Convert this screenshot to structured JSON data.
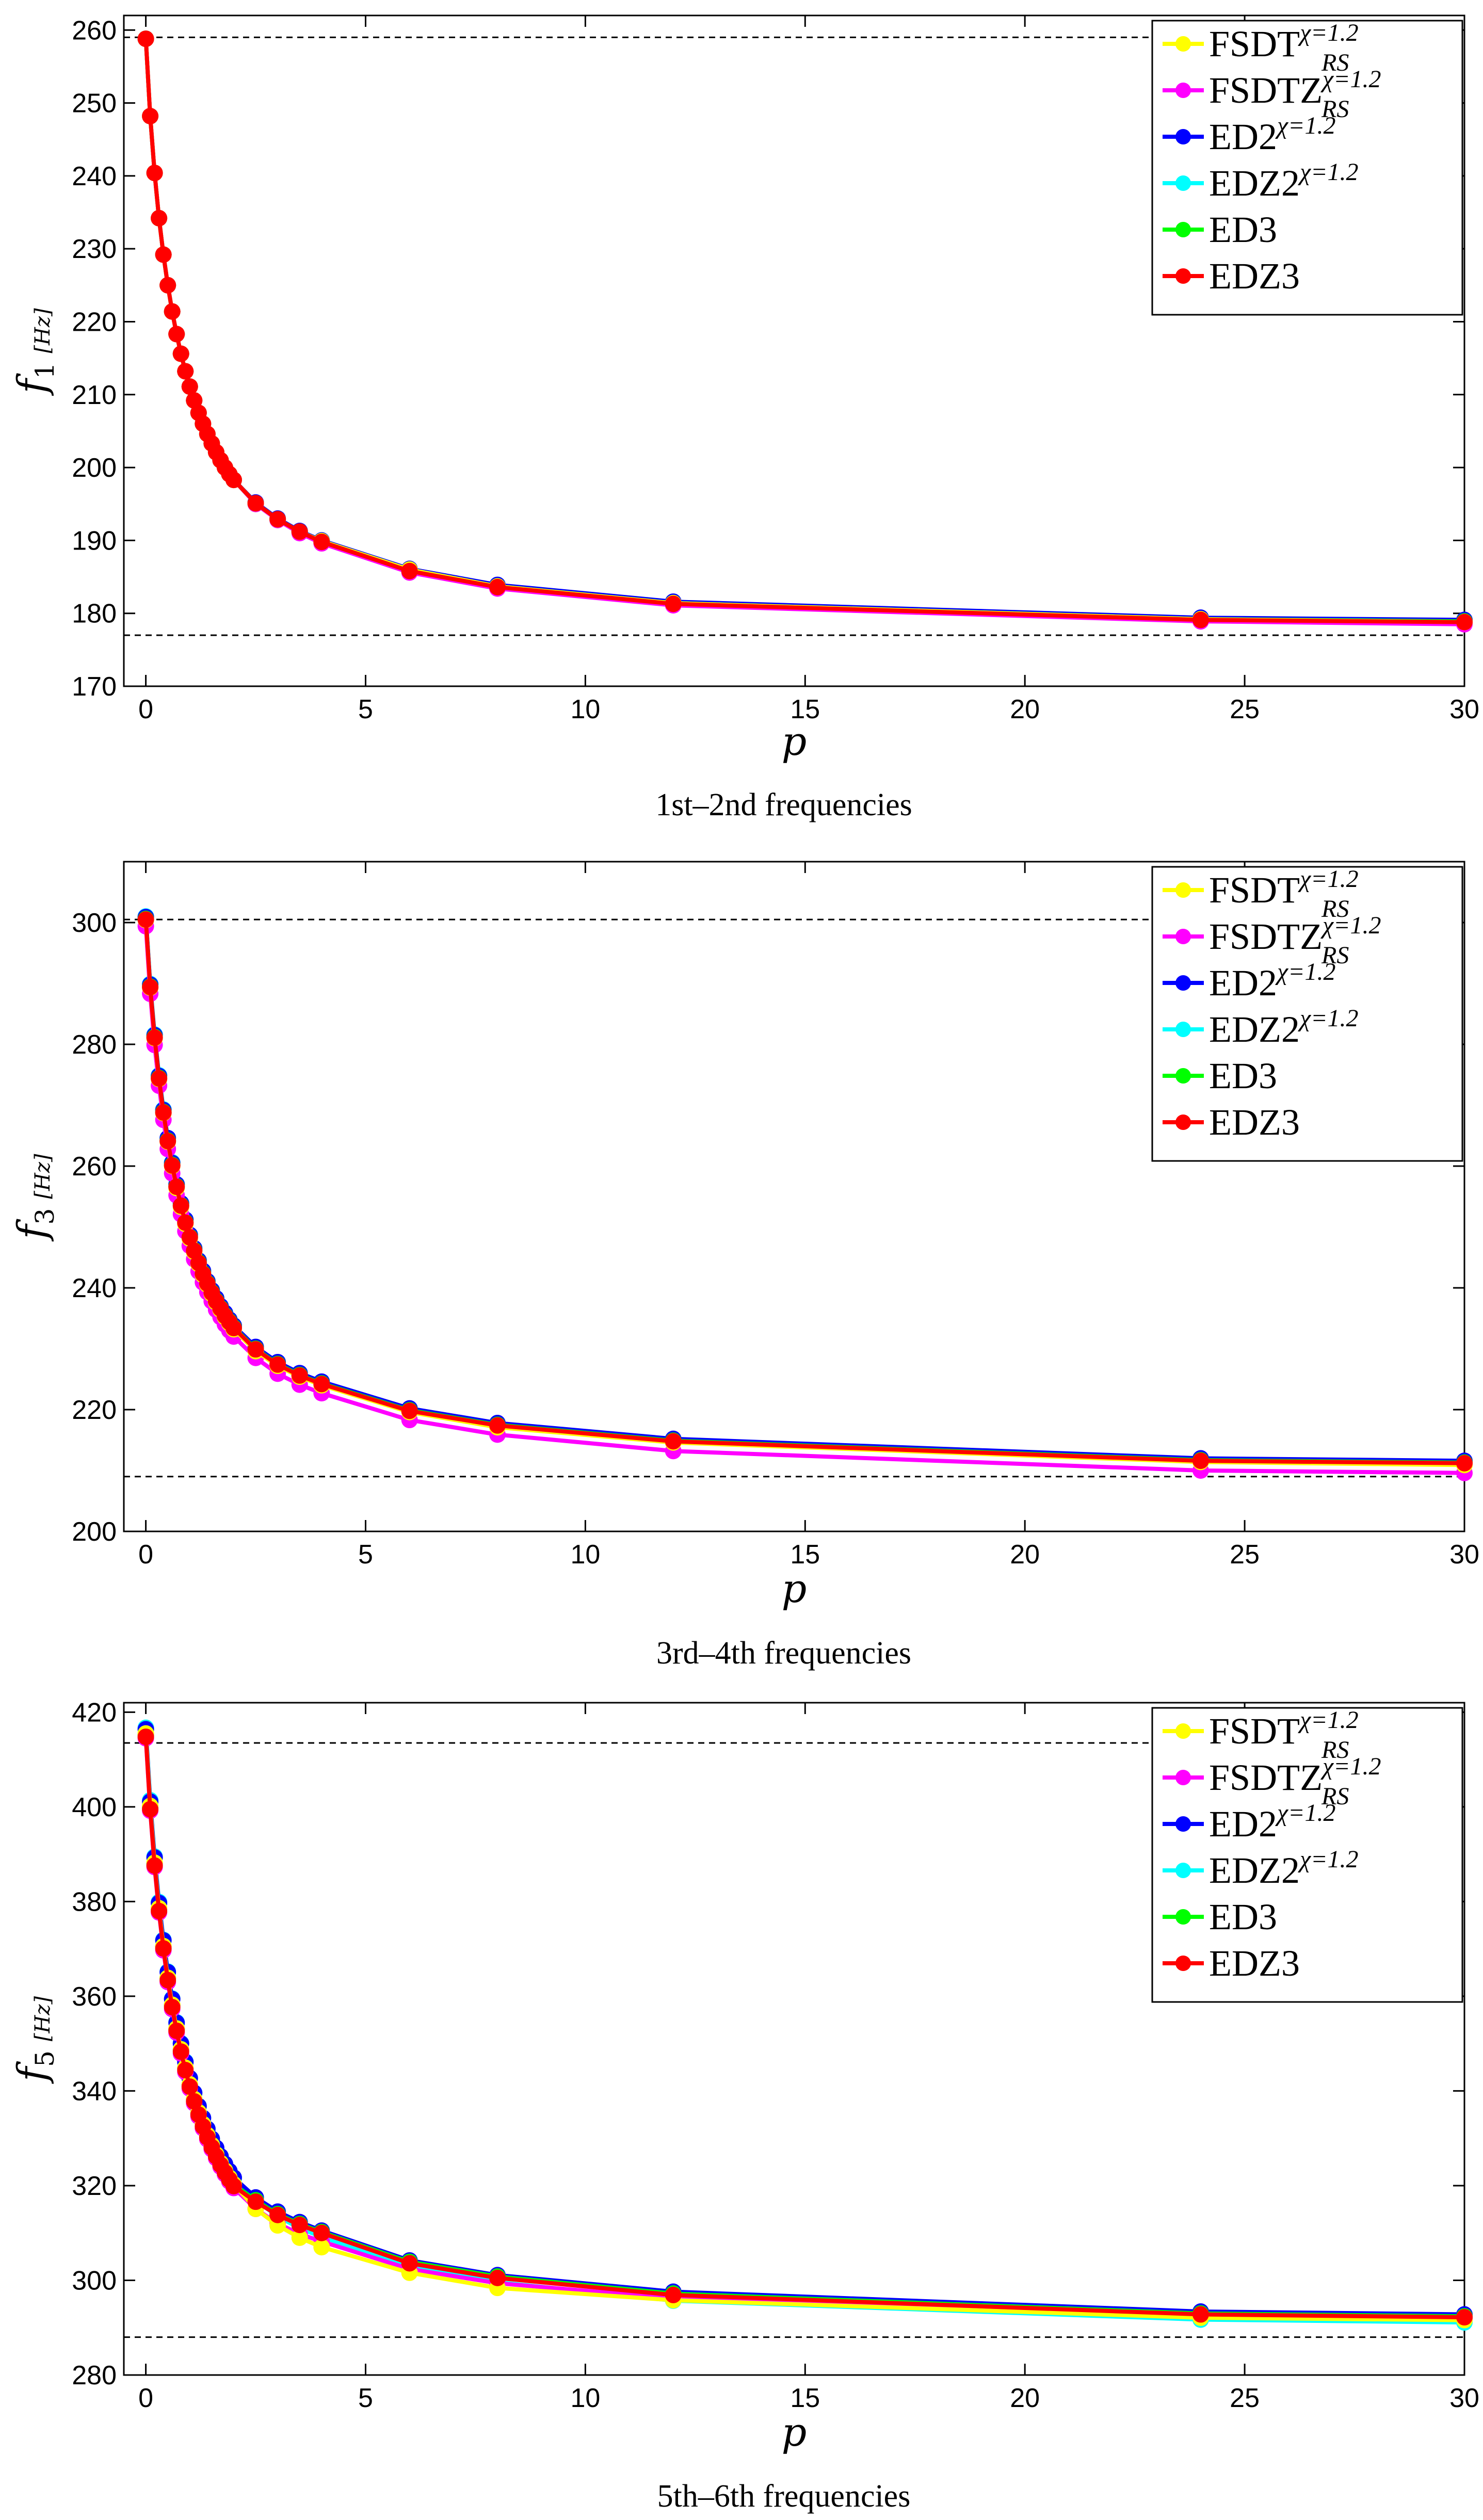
{
  "chart_data": [
    {
      "type": "line",
      "caption": "1st–2nd frequencies",
      "xlabel": "p",
      "ylabel": {
        "symbol": "f",
        "sub": "1",
        "unit": "[Hz]"
      },
      "xlim": [
        -0.5,
        30
      ],
      "ylim": [
        170,
        262
      ],
      "xticks": [
        0,
        5,
        10,
        15,
        20,
        25,
        30
      ],
      "yticks": [
        170,
        180,
        190,
        200,
        210,
        220,
        230,
        240,
        250,
        260
      ],
      "reference_lines": [
        259,
        177
      ],
      "x": [
        0,
        0.1,
        0.2,
        0.3,
        0.4,
        0.5,
        0.6,
        0.7,
        0.8,
        0.9,
        1.0,
        1.1,
        1.2,
        1.3,
        1.4,
        1.5,
        1.6,
        1.7,
        1.8,
        1.9,
        2.0,
        2.5,
        3.0,
        3.5,
        4.0,
        6.0,
        8.0,
        12.0,
        24.0,
        30.0
      ],
      "series": [
        {
          "name": "FSDT",
          "values": [
            258.8,
            248.2,
            240.4,
            234.2,
            229.2,
            225.0,
            221.4,
            218.3,
            215.6,
            213.2,
            211.1,
            209.2,
            207.5,
            206.0,
            204.6,
            203.3,
            202.1,
            201.0,
            200.0,
            199.1,
            198.3,
            195.1,
            192.9,
            191.2,
            189.9,
            186.0,
            183.7,
            181.4,
            179.2,
            178.8
          ]
        },
        {
          "name": "FSDTZ",
          "values": [
            258.8,
            248.2,
            240.4,
            234.2,
            229.2,
            225.0,
            221.4,
            218.3,
            215.6,
            213.2,
            211.1,
            209.2,
            207.5,
            206.0,
            204.6,
            203.3,
            202.1,
            201.0,
            200.0,
            199.1,
            198.3,
            195.0,
            192.8,
            191.0,
            189.6,
            185.6,
            183.4,
            181.1,
            178.9,
            178.5
          ]
        },
        {
          "name": "ED2",
          "values": [
            258.8,
            248.2,
            240.4,
            234.2,
            229.2,
            225.0,
            221.4,
            218.3,
            215.6,
            213.2,
            211.1,
            209.2,
            207.5,
            206.0,
            204.6,
            203.3,
            202.1,
            201.0,
            200.0,
            199.1,
            198.3,
            195.2,
            193.0,
            191.3,
            190.0,
            186.1,
            183.9,
            181.6,
            179.4,
            179.1
          ]
        },
        {
          "name": "EDZ2",
          "values": [
            258.8,
            248.2,
            240.4,
            234.2,
            229.2,
            225.0,
            221.4,
            218.3,
            215.6,
            213.2,
            211.1,
            209.2,
            207.5,
            206.0,
            204.6,
            203.3,
            202.1,
            201.0,
            200.0,
            199.1,
            198.3,
            195.0,
            192.8,
            191.1,
            189.7,
            185.7,
            183.5,
            181.2,
            179.0,
            178.6
          ]
        },
        {
          "name": "ED3",
          "values": [
            258.8,
            248.2,
            240.4,
            234.2,
            229.2,
            225.0,
            221.4,
            218.3,
            215.6,
            213.2,
            211.1,
            209.2,
            207.5,
            206.0,
            204.6,
            203.3,
            202.1,
            201.0,
            200.0,
            199.1,
            198.3,
            195.1,
            192.9,
            191.2,
            189.9,
            185.9,
            183.7,
            181.4,
            179.2,
            178.9
          ]
        },
        {
          "name": "EDZ3",
          "values": [
            258.8,
            248.2,
            240.4,
            234.2,
            229.2,
            225.0,
            221.4,
            218.3,
            215.6,
            213.2,
            211.1,
            209.2,
            207.5,
            206.0,
            204.6,
            203.3,
            202.1,
            201.0,
            200.0,
            199.1,
            198.3,
            195.1,
            192.9,
            191.2,
            189.8,
            185.8,
            183.6,
            181.3,
            179.1,
            178.8
          ]
        }
      ]
    },
    {
      "type": "line",
      "caption": "3rd–4th frequencies",
      "xlabel": "p",
      "ylabel": {
        "symbol": "f",
        "sub": "3",
        "unit": "[Hz]"
      },
      "xlim": [
        -0.5,
        30
      ],
      "ylim": [
        200,
        310
      ],
      "xticks": [
        0,
        5,
        10,
        15,
        20,
        25,
        30
      ],
      "yticks": [
        200,
        220,
        240,
        260,
        280,
        300
      ],
      "reference_lines": [
        300.5,
        209
      ],
      "x": [
        0,
        0.1,
        0.2,
        0.3,
        0.4,
        0.5,
        0.6,
        0.7,
        0.8,
        0.9,
        1.0,
        1.1,
        1.2,
        1.3,
        1.4,
        1.5,
        1.6,
        1.7,
        1.8,
        1.9,
        2.0,
        2.5,
        3.0,
        3.5,
        4.0,
        6.0,
        8.0,
        12.0,
        24.0,
        30.0
      ],
      "series": [
        {
          "name": "FSDT",
          "values": [
            300.4,
            289.3,
            281.0,
            274.3,
            268.7,
            264.0,
            260.0,
            256.4,
            253.3,
            250.5,
            248.1,
            245.9,
            243.9,
            242.1,
            240.5,
            239.0,
            237.6,
            236.4,
            235.2,
            234.2,
            233.2,
            229.6,
            227.2,
            225.4,
            224.0,
            219.6,
            217.1,
            214.6,
            211.4,
            210.9
          ]
        },
        {
          "name": "FSDTZ",
          "values": [
            299.4,
            288.3,
            279.9,
            273.2,
            267.6,
            262.8,
            258.8,
            255.2,
            252.1,
            249.3,
            246.9,
            244.7,
            242.7,
            240.9,
            239.3,
            237.8,
            236.4,
            235.2,
            234.0,
            233.0,
            232.0,
            228.5,
            225.9,
            224.1,
            222.7,
            218.3,
            215.9,
            213.2,
            210.0,
            209.6
          ]
        },
        {
          "name": "ED2",
          "values": [
            300.9,
            289.8,
            281.5,
            274.8,
            269.2,
            264.6,
            260.5,
            257.0,
            253.9,
            251.2,
            248.7,
            246.5,
            244.5,
            242.8,
            241.1,
            239.6,
            238.3,
            237.0,
            235.9,
            234.8,
            233.8,
            230.3,
            227.8,
            226.0,
            224.6,
            220.2,
            217.8,
            215.2,
            212.0,
            211.6
          ]
        },
        {
          "name": "EDZ2",
          "values": [
            301.0,
            289.9,
            281.6,
            274.9,
            269.3,
            264.6,
            260.6,
            257.0,
            253.9,
            251.2,
            248.7,
            246.5,
            244.5,
            242.7,
            241.1,
            239.6,
            238.2,
            236.9,
            235.8,
            234.7,
            233.7,
            230.1,
            227.6,
            225.7,
            224.3,
            219.9,
            217.4,
            214.8,
            211.6,
            211.2
          ]
        },
        {
          "name": "ED3",
          "values": [
            300.6,
            289.5,
            281.2,
            274.5,
            268.9,
            264.2,
            260.2,
            256.7,
            253.6,
            250.8,
            248.4,
            246.2,
            244.2,
            242.4,
            240.8,
            239.3,
            237.9,
            236.7,
            235.5,
            234.5,
            233.5,
            230.0,
            227.5,
            225.7,
            224.3,
            219.9,
            217.5,
            214.9,
            211.7,
            211.3
          ]
        },
        {
          "name": "EDZ3",
          "values": [
            300.5,
            289.4,
            281.1,
            274.4,
            268.8,
            264.1,
            260.1,
            256.6,
            253.5,
            250.7,
            248.3,
            246.1,
            244.1,
            242.3,
            240.7,
            239.2,
            237.8,
            236.6,
            235.4,
            234.4,
            233.4,
            229.9,
            227.4,
            225.6,
            224.2,
            219.8,
            217.4,
            214.8,
            211.6,
            211.2
          ]
        }
      ]
    },
    {
      "type": "line",
      "caption": "5th–6th frequencies",
      "xlabel": "p",
      "ylabel": {
        "symbol": "f",
        "sub": "5",
        "unit": "[Hz]"
      },
      "xlim": [
        -0.5,
        30
      ],
      "ylim": [
        280,
        422
      ],
      "xticks": [
        0,
        5,
        10,
        15,
        20,
        25,
        30
      ],
      "yticks": [
        280,
        300,
        320,
        340,
        360,
        380,
        400,
        420
      ],
      "reference_lines": [
        413.5,
        288
      ],
      "x": [
        0,
        0.1,
        0.2,
        0.3,
        0.4,
        0.5,
        0.6,
        0.7,
        0.8,
        0.9,
        1.0,
        1.1,
        1.2,
        1.3,
        1.4,
        1.5,
        1.6,
        1.7,
        1.8,
        1.9,
        2.0,
        2.5,
        3.0,
        3.5,
        4.0,
        6.0,
        8.0,
        12.0,
        24.0,
        30.0
      ],
      "series": [
        {
          "name": "FSDT",
          "values": [
            415.5,
            400.2,
            388.2,
            378.6,
            370.6,
            363.9,
            358.2,
            353.2,
            348.8,
            344.9,
            341.4,
            338.3,
            335.5,
            333.0,
            330.7,
            328.6,
            326.6,
            324.8,
            323.2,
            321.7,
            320.3,
            315.1,
            311.6,
            309.0,
            307.0,
            301.6,
            298.4,
            295.8,
            292.1,
            291.6
          ]
        },
        {
          "name": "FSDTZ",
          "values": [
            414.5,
            399.2,
            387.3,
            377.7,
            369.7,
            363.0,
            357.3,
            352.3,
            347.9,
            344.0,
            340.5,
            337.4,
            334.6,
            332.1,
            329.8,
            327.7,
            325.8,
            324.0,
            322.4,
            320.9,
            319.5,
            315.1,
            312.0,
            309.8,
            308.2,
            302.4,
            299.4,
            296.2,
            292.5,
            291.9
          ]
        },
        {
          "name": "ED2",
          "values": [
            416.4,
            401.1,
            389.3,
            379.7,
            371.8,
            365.1,
            359.4,
            354.4,
            350.0,
            346.1,
            342.7,
            339.6,
            336.8,
            334.3,
            332.0,
            329.9,
            328.0,
            326.2,
            324.6,
            323.1,
            321.7,
            317.5,
            314.5,
            312.3,
            310.5,
            304.2,
            301.1,
            297.6,
            293.4,
            292.8
          ]
        },
        {
          "name": "EDZ2",
          "values": [
            416.7,
            401.4,
            389.5,
            379.9,
            371.9,
            365.2,
            359.5,
            354.5,
            350.1,
            346.2,
            342.7,
            339.6,
            336.8,
            334.3,
            332.0,
            329.8,
            327.9,
            326.1,
            324.5,
            323.0,
            321.6,
            316.9,
            313.5,
            311.0,
            309.2,
            302.9,
            299.6,
            295.7,
            291.7,
            291.1
          ]
        },
        {
          "name": "ED3",
          "values": [
            415.2,
            399.9,
            388.0,
            378.4,
            370.5,
            363.8,
            358.1,
            353.1,
            348.7,
            344.8,
            341.3,
            338.2,
            335.4,
            332.9,
            330.6,
            328.5,
            326.6,
            324.8,
            323.2,
            321.7,
            320.3,
            316.9,
            314.0,
            311.9,
            310.2,
            303.9,
            300.8,
            297.2,
            293.0,
            292.4
          ]
        },
        {
          "name": "EDZ3",
          "values": [
            414.8,
            399.5,
            387.6,
            378.0,
            370.1,
            363.4,
            357.7,
            352.7,
            348.3,
            344.4,
            340.9,
            337.8,
            335.0,
            332.5,
            330.2,
            328.1,
            326.2,
            324.4,
            322.8,
            321.3,
            319.9,
            316.6,
            313.8,
            311.7,
            310.0,
            303.6,
            300.5,
            296.9,
            292.8,
            292.2
          ]
        }
      ]
    }
  ],
  "legend_entries": [
    {
      "label": "FSDT",
      "sub": "RS",
      "sup": "χ=1.2",
      "color": "#ffff00"
    },
    {
      "label": "FSDTZ",
      "sub": "RS",
      "sup": "χ=1.2",
      "color": "#ff00ff"
    },
    {
      "label": "ED2",
      "sub": "",
      "sup": "χ=1.2",
      "color": "#0000ff"
    },
    {
      "label": "EDZ2",
      "sub": "",
      "sup": "χ=1.2",
      "color": "#00ffff"
    },
    {
      "label": "ED3",
      "sub": "",
      "sup": "",
      "color": "#00ff00"
    },
    {
      "label": "EDZ3",
      "sub": "",
      "sup": "",
      "color": "#ff0000"
    }
  ]
}
